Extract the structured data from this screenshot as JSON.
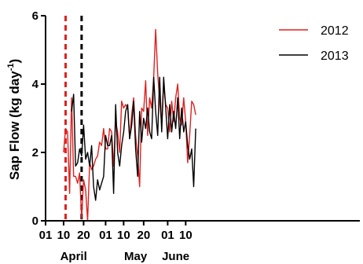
{
  "chart_data": {
    "type": "line",
    "title": "",
    "ylabel": "Sap  Flow (kg day",
    "ylabel_exponent": "-1",
    "ylabel_close": ")",
    "xlabel": "",
    "xlim_day": [
      1,
      158
    ],
    "ylim": [
      0,
      6
    ],
    "y_ticks": [
      {
        "value": 0,
        "label": "0"
      },
      {
        "value": 2,
        "label": "2"
      },
      {
        "value": 4,
        "label": "4"
      },
      {
        "value": 6,
        "label": "6"
      }
    ],
    "x_ticks": [
      {
        "day": 1,
        "label": "01"
      },
      {
        "day": 10,
        "label": "10"
      },
      {
        "day": 20,
        "label": "20"
      },
      {
        "day": 31,
        "label": "01"
      },
      {
        "day": 40,
        "label": "10"
      },
      {
        "day": 50,
        "label": "20"
      },
      {
        "day": 62,
        "label": "01"
      },
      {
        "day": 71,
        "label": "10"
      }
    ],
    "months": [
      {
        "label": "April",
        "day": 15
      },
      {
        "label": "May",
        "day": 46
      },
      {
        "label": "June",
        "day": 66
      }
    ],
    "x_units": "day of year starting 01 April (1 = April 01)",
    "reference_lines": [
      {
        "day": 11,
        "color": "#e02020",
        "style": "dashed",
        "year": "2012"
      },
      {
        "day": 19,
        "color": "#000000",
        "style": "dashed",
        "year": "2013"
      }
    ],
    "legend_position": "top-right",
    "series": [
      {
        "name": "2012",
        "color": "#e02020",
        "x": [
          10,
          11,
          12,
          13,
          14,
          15,
          16,
          17,
          18,
          19,
          20,
          21,
          22,
          23,
          24,
          25,
          26,
          27,
          28,
          29,
          30,
          31,
          32,
          33,
          34,
          35,
          36,
          37,
          38,
          39,
          40,
          41,
          42,
          43,
          44,
          45,
          46,
          47,
          48,
          49,
          50,
          51,
          52,
          53,
          54,
          55,
          56,
          57,
          58,
          59,
          60,
          61,
          62,
          63,
          64,
          65,
          66,
          67,
          68,
          69,
          70,
          71,
          72,
          73,
          74,
          75,
          76
        ],
        "values": [
          2.0,
          2.7,
          2.6,
          0.8,
          3.6,
          1.3,
          1.3,
          1.1,
          1.4,
          0.05,
          1.2,
          0.9,
          0.0,
          1.7,
          1.5,
          1.6,
          1.8,
          1.9,
          2.3,
          2.2,
          2.7,
          2.1,
          2.1,
          2.7,
          2.6,
          1.6,
          2.9,
          2.6,
          2.0,
          3.5,
          3.3,
          3.4,
          3.3,
          2.4,
          3.1,
          3.6,
          2.5,
          1.9,
          1.0,
          3.3,
          3.2,
          4.1,
          2.5,
          3.6,
          3.3,
          4.2,
          5.6,
          4.3,
          3.5,
          2.8,
          4.0,
          3.4,
          3.3,
          2.6,
          3.5,
          2.9,
          3.6,
          4.0,
          3.0,
          2.8,
          3.6,
          2.9,
          1.7,
          2.5,
          3.5,
          3.4,
          3.1
        ]
      },
      {
        "name": "2013",
        "color": "#000000",
        "x": [
          14,
          15,
          16,
          17,
          18,
          19,
          20,
          21,
          22,
          23,
          24,
          25,
          26,
          27,
          28,
          29,
          30,
          31,
          32,
          33,
          34,
          35,
          36,
          37,
          38,
          39,
          40,
          41,
          42,
          43,
          44,
          45,
          46,
          47,
          48,
          49,
          50,
          51,
          52,
          53,
          54,
          55,
          56,
          57,
          58,
          59,
          60,
          61,
          62,
          63,
          64,
          65,
          66,
          67,
          68,
          69,
          70,
          71,
          72,
          73,
          74,
          75,
          76
        ],
        "values": [
          3.2,
          3.7,
          1.6,
          1.7,
          2.1,
          1.9,
          2.8,
          1.8,
          2.0,
          1.6,
          2.2,
          1.0,
          0.6,
          1.2,
          0.9,
          1.1,
          1.3,
          2.5,
          2.2,
          2.2,
          2.5,
          0.8,
          3.4,
          2.0,
          1.6,
          2.2,
          2.6,
          3.2,
          3.4,
          2.4,
          2.8,
          3.5,
          2.1,
          1.3,
          3.2,
          2.3,
          3.0,
          2.7,
          3.3,
          2.6,
          2.4,
          4.2,
          3.2,
          2.5,
          4.2,
          2.6,
          4.2,
          3.3,
          2.4,
          3.4,
          2.6,
          3.2,
          2.7,
          3.6,
          2.4,
          3.3,
          2.6,
          2.9,
          2.2,
          1.8,
          2.1,
          1.0,
          2.7
        ]
      }
    ]
  }
}
